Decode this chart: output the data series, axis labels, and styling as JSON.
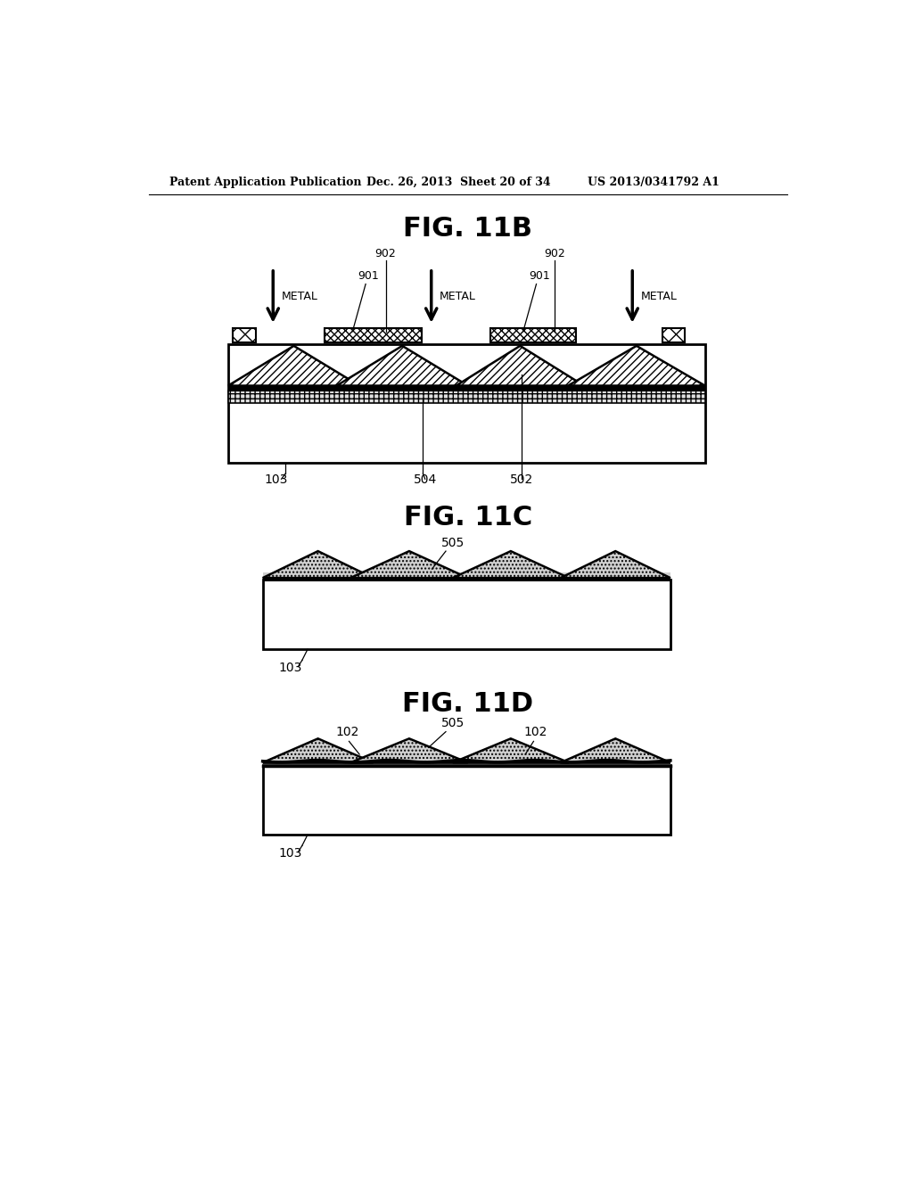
{
  "bg_color": "#ffffff",
  "header_left": "Patent Application Publication",
  "header_mid": "Dec. 26, 2013  Sheet 20 of 34",
  "header_right": "US 2013/0341792 A1",
  "fig11b_title": "FIG. 11B",
  "fig11c_title": "FIG. 11C",
  "fig11d_title": "FIG. 11D",
  "label_METAL": "METAL",
  "label_901": "901",
  "label_902": "902",
  "label_103": "103",
  "label_504": "504",
  "label_502": "502",
  "label_505": "505",
  "label_102": "102",
  "line_color": "#000000",
  "hatch_diagonal": "////",
  "hatch_cross": "xxxx",
  "hatch_dot": "....",
  "hatch_grid": "+++"
}
